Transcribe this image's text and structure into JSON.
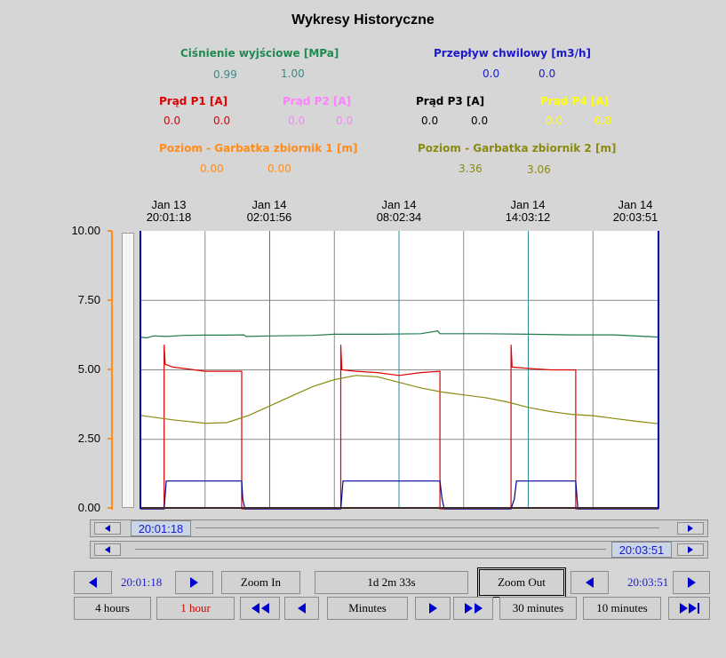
{
  "title": "Wykresy Historyczne",
  "legend": {
    "pressure": {
      "label": "Ciśnienie wyjściowe [MPa]",
      "v1": "0.99",
      "v2": "1.00",
      "color": "#1e8a50",
      "valcolor": "#3a8a8a"
    },
    "flow": {
      "label": "Przepływ chwilowy [m3/h]",
      "v1": "0.0",
      "v2": "0.0",
      "color": "#1a1acc"
    },
    "p1": {
      "label": "Prąd P1 [A]",
      "v1": "0.0",
      "v2": "0.0",
      "color": "#e00000"
    },
    "p2": {
      "label": "Prąd P2 [A]",
      "v1": "0.0",
      "v2": "0.0",
      "color": "#ff80ff"
    },
    "p3": {
      "label": "Prąd P3 [A]",
      "v1": "0.0",
      "v2": "0.0",
      "color": "#000000"
    },
    "p4": {
      "label": "Prąd P4 [A]",
      "v1": "0.0",
      "v2": "0.0",
      "color": "#ffff00"
    },
    "level1": {
      "label": "Poziom - Garbatka zbiornik 1 [m]",
      "v1": "0.00",
      "v2": "0.00",
      "color": "#ff8c1a"
    },
    "level2": {
      "label": "Poziom - Garbatka zbiornik 2 [m]",
      "v1": "3.36",
      "v2": "3.06",
      "color": "#8a8a10"
    }
  },
  "time_axis": [
    {
      "date": "Jan 13",
      "time": "20:01:18"
    },
    {
      "date": "Jan 14",
      "time": "02:01:56"
    },
    {
      "date": "Jan 14",
      "time": "08:02:34"
    },
    {
      "date": "Jan 14",
      "time": "14:03:12"
    },
    {
      "date": "Jan 14",
      "time": "20:03:51"
    }
  ],
  "y_ticks": [
    "10.00",
    "7.50",
    "5.00",
    "2.50",
    "0.00"
  ],
  "scroll": {
    "start": "20:01:18",
    "end": "20:03:51"
  },
  "controls": {
    "start_time": "20:01:18",
    "zoom_in": "Zoom In",
    "span": "1d 2m 33s",
    "zoom_out": "Zoom Out",
    "end_time": "20:03:51",
    "hours4": "4 hours",
    "hour1": "1 hour",
    "minutes": "Minutes",
    "min30": "30 minutes",
    "min10": "10 minutes"
  },
  "chart_data": {
    "type": "line",
    "x_unit": "hours since start (Jan 13 20:01:18)",
    "ylim": [
      0,
      10
    ],
    "xlim": [
      0,
      24.04
    ],
    "series": [
      {
        "name": "Ciśnienie wyjściowe [MPa]",
        "color": "#1e7a4a",
        "points": [
          [
            0,
            6.18
          ],
          [
            0.3,
            6.15
          ],
          [
            0.6,
            6.22
          ],
          [
            1.2,
            6.2
          ],
          [
            2.0,
            6.24
          ],
          [
            3.0,
            6.25
          ],
          [
            4.0,
            6.25
          ],
          [
            4.8,
            6.26
          ],
          [
            4.9,
            6.2
          ],
          [
            6.0,
            6.22
          ],
          [
            8.0,
            6.24
          ],
          [
            9.0,
            6.28
          ],
          [
            11.0,
            6.28
          ],
          [
            13.0,
            6.3
          ],
          [
            13.8,
            6.4
          ],
          [
            13.9,
            6.3
          ],
          [
            16.0,
            6.3
          ],
          [
            18.0,
            6.28
          ],
          [
            20.0,
            6.26
          ],
          [
            22.0,
            6.26
          ],
          [
            24.04,
            6.18
          ]
        ]
      },
      {
        "name": "Prąd P1 [A]",
        "color": "#e00000",
        "points": [
          [
            0,
            0
          ],
          [
            1.1,
            0
          ],
          [
            1.1,
            5.9
          ],
          [
            1.15,
            5.2
          ],
          [
            1.5,
            5.1
          ],
          [
            2,
            5.05
          ],
          [
            3,
            4.95
          ],
          [
            4.7,
            4.95
          ],
          [
            4.7,
            0
          ],
          [
            9.3,
            0
          ],
          [
            9.3,
            5.9
          ],
          [
            9.35,
            5.0
          ],
          [
            10,
            4.95
          ],
          [
            11,
            4.9
          ],
          [
            12,
            4.8
          ],
          [
            13,
            4.9
          ],
          [
            13.9,
            4.95
          ],
          [
            13.9,
            0
          ],
          [
            17.2,
            0
          ],
          [
            17.2,
            5.9
          ],
          [
            17.25,
            5.1
          ],
          [
            18,
            5.05
          ],
          [
            19,
            5.0
          ],
          [
            20.2,
            5.0
          ],
          [
            20.2,
            0
          ],
          [
            24.04,
            0
          ]
        ]
      },
      {
        "name": "Przepływ chwilowy [m3/h]",
        "color": "#00009a",
        "points": [
          [
            0,
            0
          ],
          [
            1.1,
            0
          ],
          [
            1.2,
            1.0
          ],
          [
            4.7,
            1.0
          ],
          [
            4.75,
            0.35
          ],
          [
            4.85,
            0
          ],
          [
            9.3,
            0
          ],
          [
            9.4,
            1.0
          ],
          [
            13.9,
            1.0
          ],
          [
            14.0,
            0.35
          ],
          [
            14.1,
            0
          ],
          [
            17.2,
            0
          ],
          [
            17.35,
            0.35
          ],
          [
            17.45,
            1.0
          ],
          [
            20.2,
            1.0
          ],
          [
            20.3,
            0
          ],
          [
            24.04,
            0
          ]
        ]
      },
      {
        "name": "Poziom - Garbatka zbiornik 2 [m]",
        "color": "#8a8a10",
        "points": [
          [
            0,
            3.36
          ],
          [
            1.5,
            3.2
          ],
          [
            3,
            3.08
          ],
          [
            4,
            3.1
          ],
          [
            5,
            3.35
          ],
          [
            6,
            3.7
          ],
          [
            7,
            4.05
          ],
          [
            8,
            4.4
          ],
          [
            9,
            4.65
          ],
          [
            10,
            4.8
          ],
          [
            11,
            4.75
          ],
          [
            12,
            4.55
          ],
          [
            13,
            4.35
          ],
          [
            14,
            4.2
          ],
          [
            15,
            4.1
          ],
          [
            16,
            4.0
          ],
          [
            17,
            3.85
          ],
          [
            18,
            3.65
          ],
          [
            19,
            3.5
          ],
          [
            20,
            3.4
          ],
          [
            21,
            3.35
          ],
          [
            22,
            3.25
          ],
          [
            23,
            3.15
          ],
          [
            24.04,
            3.06
          ]
        ]
      }
    ]
  }
}
